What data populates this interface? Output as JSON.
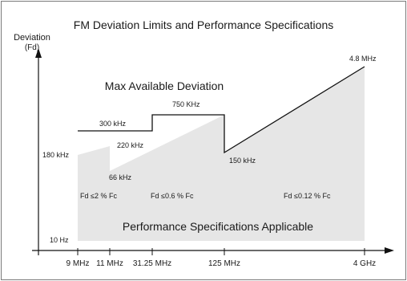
{
  "chart_data": {
    "type": "area",
    "title": "FM Deviation Limits and Performance Specifications",
    "ylabel_line1": "Deviation",
    "ylabel_line2": "(Fd)",
    "x_tick_labels": [
      "9 MHz",
      "11 MHz",
      "31.25 MHz",
      "125 MHz",
      "4 GHz"
    ],
    "y_bottom_label": "10 Hz",
    "max_line_label": "Max Available Deviation",
    "performance_label": "Performance Specifications Applicable",
    "point_labels": [
      "180 kHz",
      "300 kHz",
      "220 kHz",
      "66 kHz",
      "750 KHz",
      "150 kHz",
      "4.8 MHz"
    ],
    "region_specs": [
      "Fd  ≤2 % Fc",
      "Fd  ≤0.6 % Fc",
      "Fd  ≤0.12 % Fc"
    ],
    "colors": {
      "line": "#111111",
      "fill": "#e6e6e6",
      "frame": "#7a7a7a",
      "background": "#ffffff"
    }
  }
}
